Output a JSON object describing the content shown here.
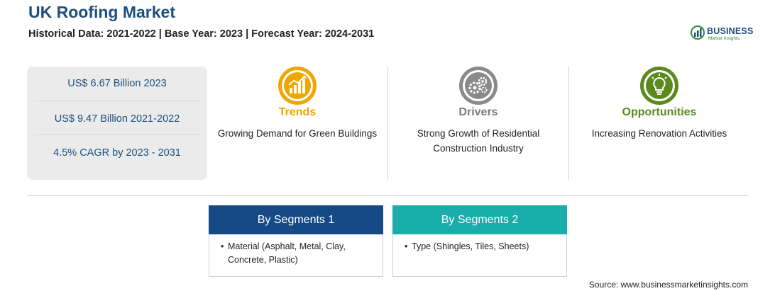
{
  "header": {
    "title": "UK Roofing Market",
    "subtitle": "Historical Data: 2021-2022 | Base Year: 2023 | Forecast Year: 2024-2031"
  },
  "logo": {
    "name": "BUSINESS",
    "tagline": "Market Insights"
  },
  "stats": [
    "US$ 6.67 Billion 2023",
    "US$ 9.47 Billion 2021-2022",
    "4.5% CAGR by 2023 - 2031"
  ],
  "columns": [
    {
      "heading": "Trends",
      "text": "Growing Demand for Green Buildings",
      "icon": "growth-chart-icon",
      "color": "#f0a500"
    },
    {
      "heading": "Drivers",
      "text": "Strong Growth of Residential Construction Industry",
      "icon": "gears-icon",
      "color": "#8a8a8a"
    },
    {
      "heading": "Opportunities",
      "text": "Increasing Renovation Activities",
      "icon": "lightbulb-icon",
      "color": "#5a8a1e"
    }
  ],
  "segments": [
    {
      "heading": "By Segments 1",
      "items": [
        "Material (Asphalt, Metal, Clay, Concrete, Plastic)"
      ],
      "color": "#154a86"
    },
    {
      "heading": "By Segments 2",
      "items": [
        "Type (Shingles, Tiles, Sheets)"
      ],
      "color": "#1aaeaa"
    }
  ],
  "footer": {
    "source": "Source: www.businessmarketinsights.com"
  }
}
